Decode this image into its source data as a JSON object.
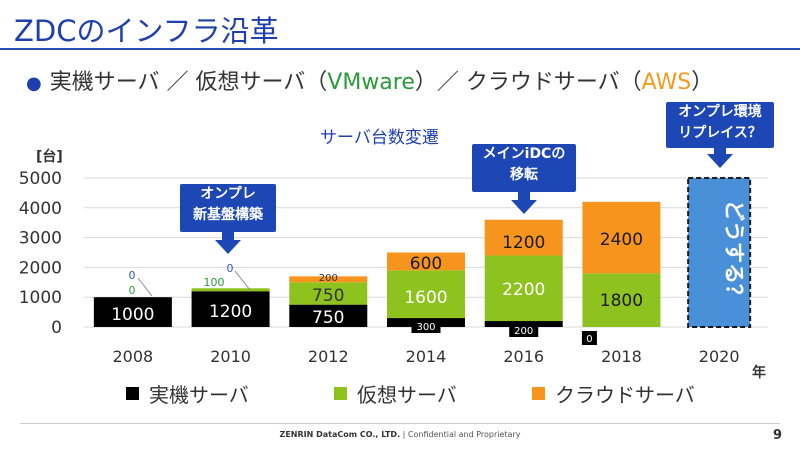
{
  "title": "ZDCのインフラ沿革",
  "bullet": {
    "pre": "実機サーバ ／ 仮想サーバ（",
    "vmware": "VMware",
    "mid": "）／ クラウドサーバ（",
    "aws": "AWS",
    "post": "）"
  },
  "callouts": {
    "c2010": [
      "オンプレ",
      "新基盤構築"
    ],
    "c2016": [
      "メインiDCの",
      "移転"
    ],
    "c2020": [
      "オンプレ環境",
      "リプレイス？"
    ]
  },
  "colors": {
    "physical": "#000000",
    "virtual": "#8dc21f",
    "cloud": "#f7941d",
    "accent": "#1f3fb0",
    "placeholder": "#4a90d9"
  },
  "chart_data": {
    "type": "bar",
    "stacked": true,
    "title": "サーバ台数変遷",
    "ylabel": "[台]",
    "xlabel": "年",
    "ylim": [
      0,
      5000
    ],
    "yticks": [
      0,
      1000,
      2000,
      3000,
      4000,
      5000
    ],
    "grid": true,
    "legend_position": "bottom",
    "categories": [
      "2008",
      "2010",
      "2012",
      "2014",
      "2016",
      "2018",
      "2020"
    ],
    "series": [
      {
        "name": "実機サーバ",
        "values": [
          1000,
          1200,
          750,
          300,
          200,
          0,
          null
        ]
      },
      {
        "name": "仮想サーバ",
        "values": [
          0,
          100,
          750,
          1600,
          2200,
          1800,
          null
        ]
      },
      {
        "name": "クラウドサーバ",
        "values": [
          0,
          0,
          200,
          600,
          1200,
          2400,
          null
        ]
      }
    ],
    "placeholder": {
      "category": "2020",
      "value": 5000,
      "text": "どうする？"
    }
  },
  "footer": {
    "company": "ZENRIN DataCom CO., LTD.",
    "sep": "|",
    "text": "Confidential and Proprietary",
    "page": "9"
  }
}
